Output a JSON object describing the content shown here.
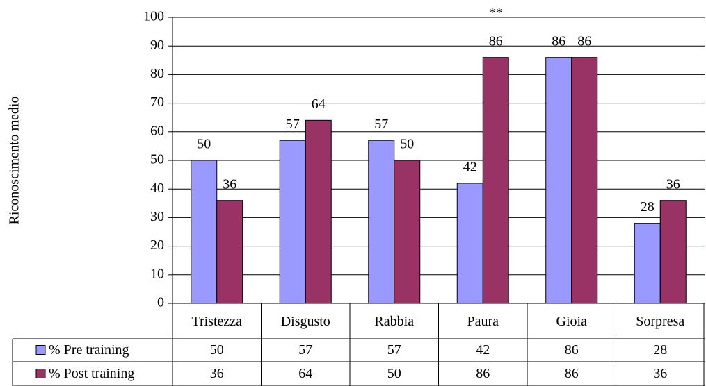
{
  "chart_data": {
    "type": "bar",
    "y_label": "Riconoscimento medio",
    "categories": [
      "Tristezza",
      "Disgusto",
      "Rabbia",
      "Paura",
      "Gioia",
      "Sorpresa"
    ],
    "series": [
      {
        "name": "% Pre training",
        "color": "#9999ff",
        "values": [
          50,
          57,
          57,
          42,
          86,
          28
        ]
      },
      {
        "name": "% Post training",
        "color": "#993366",
        "values": [
          36,
          64,
          50,
          86,
          86,
          36
        ]
      }
    ],
    "ylim": [
      0,
      100
    ],
    "yticks": [
      0,
      10,
      20,
      30,
      40,
      50,
      60,
      70,
      80,
      90,
      100
    ],
    "grid": true,
    "annotations": [
      {
        "text": "**",
        "x": "Paura"
      }
    ]
  }
}
